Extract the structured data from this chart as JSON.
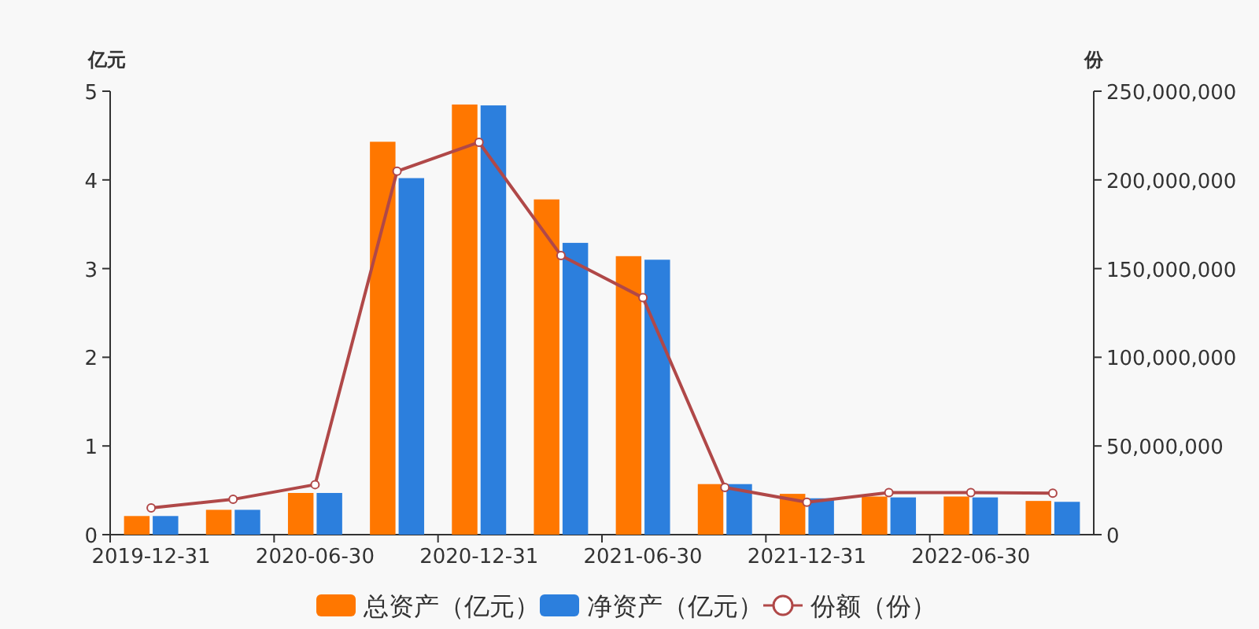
{
  "chart_data": {
    "type": "bar",
    "ylabel": "亿元",
    "y2label": "份",
    "categories": [
      "2019-12-31",
      null,
      "2020-06-30",
      null,
      "2020-12-31",
      null,
      "2021-06-30",
      null,
      "2021-12-31",
      null,
      "2022-06-30",
      null
    ],
    "series": [
      {
        "name": "总资产（亿元）",
        "color": "#ff7700",
        "values": [
          0.21,
          0.28,
          0.47,
          4.43,
          4.85,
          3.78,
          3.14,
          0.57,
          0.46,
          0.43,
          0.43,
          0.38
        ]
      },
      {
        "name": "净资产（亿元）",
        "color": "#2c7fdd",
        "values": [
          0.21,
          0.28,
          0.47,
          4.02,
          4.84,
          3.29,
          3.1,
          0.57,
          0.41,
          0.42,
          0.42,
          0.37
        ]
      },
      {
        "name": "份额（份）",
        "type": "line",
        "axis": "y2",
        "color": "#b04848",
        "marker": "circle",
        "values": [
          15100000,
          19900000,
          28200000,
          204900000,
          221200000,
          157400000,
          133600000,
          26600000,
          18300000,
          23700000,
          23700000,
          23400000
        ]
      }
    ],
    "ylim": [
      0,
      5
    ],
    "yticks": [
      0,
      1,
      2,
      3,
      4,
      5
    ],
    "y2lim": [
      0,
      250000000
    ],
    "y2ticks": [
      {
        "value": 0,
        "label": "0"
      },
      {
        "value": 50000000,
        "label": "50,000,000"
      },
      {
        "value": 100000000,
        "label": "100,000,000"
      },
      {
        "value": 150000000,
        "label": "150,000,000"
      },
      {
        "value": 200000000,
        "label": "200,000,000"
      },
      {
        "value": 250000000,
        "label": "250,000,000"
      }
    ],
    "legend": "bottom"
  }
}
